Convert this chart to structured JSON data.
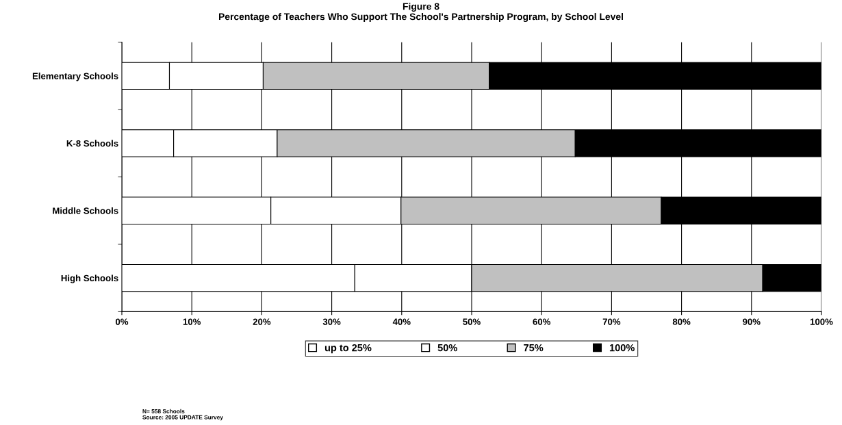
{
  "chart_data": {
    "type": "bar",
    "orientation": "horizontal",
    "stacked": true,
    "title": "Figure 8",
    "subtitle": "Percentage of Teachers Who Support The School's Partnership Program, by School Level",
    "categories": [
      "Elementary Schools",
      "K-8 Schools",
      "Middle Schools",
      "High Schools"
    ],
    "series": [
      {
        "name": "up to 25%",
        "color": "#ffffff",
        "values": [
          6.8,
          7.4,
          21.3,
          33.3
        ]
      },
      {
        "name": "50%",
        "color": "#ffffff",
        "values": [
          13.4,
          14.8,
          18.6,
          16.7
        ]
      },
      {
        "name": "75%",
        "color": "#c0c0c0",
        "values": [
          32.3,
          42.6,
          37.2,
          41.6
        ]
      },
      {
        "name": "100%",
        "color": "#000000",
        "values": [
          47.5,
          35.2,
          22.9,
          8.4
        ]
      }
    ],
    "xlim": [
      0,
      100
    ],
    "xticks": [
      {
        "value": 0,
        "label": "0%"
      },
      {
        "value": 10,
        "label": "10%"
      },
      {
        "value": 20,
        "label": "20%"
      },
      {
        "value": 30,
        "label": "30%"
      },
      {
        "value": 40,
        "label": "40%"
      },
      {
        "value": 50,
        "label": "50%"
      },
      {
        "value": 60,
        "label": "60%"
      },
      {
        "value": 70,
        "label": "70%"
      },
      {
        "value": 80,
        "label": "80%"
      },
      {
        "value": 90,
        "label": "90%"
      },
      {
        "value": 100,
        "label": "100%"
      }
    ],
    "grid": "x",
    "legend": "bottom",
    "annotations": [
      "N= 558 Schools",
      "Source: 2005 UPDATE Survey"
    ]
  }
}
